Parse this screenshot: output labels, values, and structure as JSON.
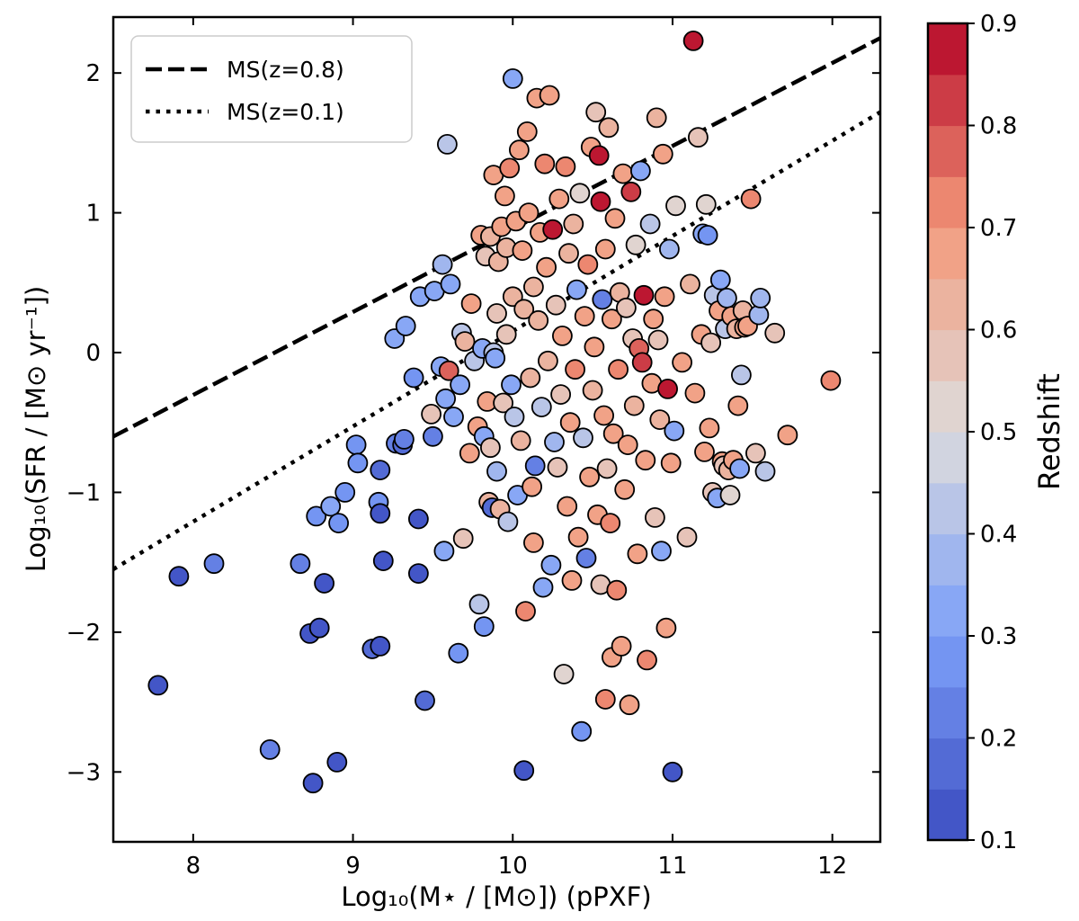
{
  "chart_data": {
    "type": "scatter",
    "xlabel": "Log₁₀(M⋆ / [M⊙]) (pPXF)",
    "ylabel": "Log₁₀(SFR / [M⊙ yr⁻¹])",
    "xlim": [
      7.5,
      12.3
    ],
    "ylim": [
      -3.5,
      2.4
    ],
    "xticks": [
      8,
      9,
      10,
      11,
      12
    ],
    "yticks": [
      -3,
      -2,
      -1,
      0,
      1,
      2
    ],
    "colorbar": {
      "label": "Redshift",
      "range": [
        0.1,
        0.9
      ],
      "ticks": [
        0.1,
        0.2,
        0.3,
        0.4,
        0.5,
        0.6,
        0.7,
        0.8,
        0.9
      ],
      "colormap": "coolwarm",
      "levels": 16
    },
    "lines": [
      {
        "name": "MS(z=0.8)",
        "style": "dashed",
        "x": [
          7.5,
          12.3
        ],
        "y": [
          -0.6,
          2.25
        ]
      },
      {
        "name": "MS(z=0.1)",
        "style": "dotted",
        "x": [
          7.5,
          12.3
        ],
        "y": [
          -1.55,
          1.72
        ]
      }
    ],
    "legend": {
      "location": "top-left",
      "entries": [
        "MS(z=0.8)",
        "MS(z=0.1)"
      ]
    },
    "points": [
      {
        "x": 7.78,
        "y": -2.38,
        "z": 0.12
      },
      {
        "x": 7.91,
        "y": -1.6,
        "z": 0.13
      },
      {
        "x": 8.13,
        "y": -1.51,
        "z": 0.22
      },
      {
        "x": 8.48,
        "y": -2.84,
        "z": 0.25
      },
      {
        "x": 8.67,
        "y": -1.51,
        "z": 0.2
      },
      {
        "x": 8.73,
        "y": -2.01,
        "z": 0.14
      },
      {
        "x": 8.75,
        "y": -3.08,
        "z": 0.15
      },
      {
        "x": 8.77,
        "y": -1.17,
        "z": 0.3
      },
      {
        "x": 8.79,
        "y": -1.97,
        "z": 0.13
      },
      {
        "x": 8.82,
        "y": -1.65,
        "z": 0.14
      },
      {
        "x": 8.86,
        "y": -1.1,
        "z": 0.32
      },
      {
        "x": 8.9,
        "y": -2.93,
        "z": 0.14
      },
      {
        "x": 8.91,
        "y": -1.22,
        "z": 0.3
      },
      {
        "x": 8.95,
        "y": -1.0,
        "z": 0.3
      },
      {
        "x": 9.02,
        "y": -0.66,
        "z": 0.3
      },
      {
        "x": 9.03,
        "y": -0.79,
        "z": 0.28
      },
      {
        "x": 9.12,
        "y": -2.12,
        "z": 0.16
      },
      {
        "x": 9.16,
        "y": -1.07,
        "z": 0.26
      },
      {
        "x": 9.17,
        "y": -0.84,
        "z": 0.17
      },
      {
        "x": 9.17,
        "y": -2.1,
        "z": 0.15
      },
      {
        "x": 9.17,
        "y": -1.15,
        "z": 0.15
      },
      {
        "x": 9.19,
        "y": -1.49,
        "z": 0.14
      },
      {
        "x": 9.26,
        "y": 0.1,
        "z": 0.35
      },
      {
        "x": 9.27,
        "y": -0.65,
        "z": 0.22
      },
      {
        "x": 9.31,
        "y": -0.66,
        "z": 0.18
      },
      {
        "x": 9.32,
        "y": -0.62,
        "z": 0.24
      },
      {
        "x": 9.33,
        "y": 0.19,
        "z": 0.33
      },
      {
        "x": 9.38,
        "y": -0.18,
        "z": 0.3
      },
      {
        "x": 9.41,
        "y": -1.19,
        "z": 0.15
      },
      {
        "x": 9.41,
        "y": -1.58,
        "z": 0.15
      },
      {
        "x": 9.42,
        "y": 0.4,
        "z": 0.33
      },
      {
        "x": 9.45,
        "y": -2.49,
        "z": 0.18
      },
      {
        "x": 9.49,
        "y": -0.44,
        "z": 0.55
      },
      {
        "x": 9.5,
        "y": -0.6,
        "z": 0.25
      },
      {
        "x": 9.51,
        "y": 0.44,
        "z": 0.33
      },
      {
        "x": 9.55,
        "y": -0.1,
        "z": 0.32
      },
      {
        "x": 9.56,
        "y": 0.63,
        "z": 0.38
      },
      {
        "x": 9.57,
        "y": -1.42,
        "z": 0.35
      },
      {
        "x": 9.58,
        "y": -0.33,
        "z": 0.32
      },
      {
        "x": 9.59,
        "y": 1.49,
        "z": 0.4
      },
      {
        "x": 9.6,
        "y": -0.13,
        "z": 0.75
      },
      {
        "x": 9.61,
        "y": 0.49,
        "z": 0.35
      },
      {
        "x": 9.63,
        "y": -0.46,
        "z": 0.35
      },
      {
        "x": 9.66,
        "y": -2.15,
        "z": 0.3
      },
      {
        "x": 9.67,
        "y": -0.23,
        "z": 0.35
      },
      {
        "x": 9.68,
        "y": 0.14,
        "z": 0.4
      },
      {
        "x": 9.69,
        "y": -1.33,
        "z": 0.58
      },
      {
        "x": 9.7,
        "y": 0.08,
        "z": 0.6
      },
      {
        "x": 9.73,
        "y": -0.72,
        "z": 0.7
      },
      {
        "x": 9.74,
        "y": 0.35,
        "z": 0.65
      },
      {
        "x": 9.76,
        "y": -0.06,
        "z": 0.4
      },
      {
        "x": 9.78,
        "y": -0.53,
        "z": 0.65
      },
      {
        "x": 9.79,
        "y": -1.8,
        "z": 0.4
      },
      {
        "x": 9.8,
        "y": 0.84,
        "z": 0.65
      },
      {
        "x": 9.81,
        "y": 0.03,
        "z": 0.35
      },
      {
        "x": 9.82,
        "y": -1.96,
        "z": 0.3
      },
      {
        "x": 9.82,
        "y": -0.6,
        "z": 0.35
      },
      {
        "x": 9.83,
        "y": 0.69,
        "z": 0.58
      },
      {
        "x": 9.84,
        "y": -0.35,
        "z": 0.65
      },
      {
        "x": 9.85,
        "y": -1.07,
        "z": 0.62
      },
      {
        "x": 9.86,
        "y": 0.83,
        "z": 0.62
      },
      {
        "x": 9.86,
        "y": -0.68,
        "z": 0.55
      },
      {
        "x": 9.87,
        "y": -1.11,
        "z": 0.18
      },
      {
        "x": 9.88,
        "y": 1.27,
        "z": 0.68
      },
      {
        "x": 9.88,
        "y": 0.0,
        "z": 0.45
      },
      {
        "x": 9.89,
        "y": -0.04,
        "z": 0.35
      },
      {
        "x": 9.9,
        "y": -0.85,
        "z": 0.38
      },
      {
        "x": 9.9,
        "y": 0.28,
        "z": 0.58
      },
      {
        "x": 9.91,
        "y": 0.65,
        "z": 0.6
      },
      {
        "x": 9.92,
        "y": -1.12,
        "z": 0.62
      },
      {
        "x": 9.93,
        "y": 0.9,
        "z": 0.65
      },
      {
        "x": 9.94,
        "y": -0.36,
        "z": 0.55
      },
      {
        "x": 9.95,
        "y": 1.12,
        "z": 0.65
      },
      {
        "x": 9.96,
        "y": 0.75,
        "z": 0.62
      },
      {
        "x": 9.96,
        "y": 0.13,
        "z": 0.58
      },
      {
        "x": 9.97,
        "y": -1.21,
        "z": 0.45
      },
      {
        "x": 9.98,
        "y": 1.32,
        "z": 0.72
      },
      {
        "x": 9.99,
        "y": -0.23,
        "z": 0.35
      },
      {
        "x": 10.0,
        "y": 1.96,
        "z": 0.35
      },
      {
        "x": 10.0,
        "y": 0.4,
        "z": 0.62
      },
      {
        "x": 10.01,
        "y": -0.46,
        "z": 0.4
      },
      {
        "x": 10.02,
        "y": 0.94,
        "z": 0.7
      },
      {
        "x": 10.03,
        "y": -1.02,
        "z": 0.35
      },
      {
        "x": 10.04,
        "y": 1.45,
        "z": 0.7
      },
      {
        "x": 10.05,
        "y": -0.63,
        "z": 0.62
      },
      {
        "x": 10.06,
        "y": 0.73,
        "z": 0.65
      },
      {
        "x": 10.07,
        "y": 0.31,
        "z": 0.6
      },
      {
        "x": 10.07,
        "y": -2.99,
        "z": 0.15
      },
      {
        "x": 10.08,
        "y": -1.85,
        "z": 0.72
      },
      {
        "x": 10.09,
        "y": 1.58,
        "z": 0.7
      },
      {
        "x": 10.1,
        "y": 1.0,
        "z": 0.68
      },
      {
        "x": 10.11,
        "y": -0.18,
        "z": 0.62
      },
      {
        "x": 10.12,
        "y": -0.96,
        "z": 0.7
      },
      {
        "x": 10.13,
        "y": 0.47,
        "z": 0.6
      },
      {
        "x": 10.13,
        "y": -1.36,
        "z": 0.7
      },
      {
        "x": 10.14,
        "y": -0.81,
        "z": 0.2
      },
      {
        "x": 10.15,
        "y": 1.82,
        "z": 0.7
      },
      {
        "x": 10.16,
        "y": 0.23,
        "z": 0.62
      },
      {
        "x": 10.17,
        "y": 0.86,
        "z": 0.66
      },
      {
        "x": 10.18,
        "y": -0.39,
        "z": 0.4
      },
      {
        "x": 10.19,
        "y": -1.68,
        "z": 0.35
      },
      {
        "x": 10.2,
        "y": 1.35,
        "z": 0.72
      },
      {
        "x": 10.21,
        "y": 0.61,
        "z": 0.68
      },
      {
        "x": 10.22,
        "y": -0.06,
        "z": 0.62
      },
      {
        "x": 10.23,
        "y": 1.84,
        "z": 0.68
      },
      {
        "x": 10.24,
        "y": -1.52,
        "z": 0.35
      },
      {
        "x": 10.25,
        "y": 0.88,
        "z": 0.88
      },
      {
        "x": 10.26,
        "y": -0.64,
        "z": 0.38
      },
      {
        "x": 10.27,
        "y": 0.34,
        "z": 0.55
      },
      {
        "x": 10.28,
        "y": -0.82,
        "z": 0.58
      },
      {
        "x": 10.29,
        "y": 1.1,
        "z": 0.7
      },
      {
        "x": 10.3,
        "y": -0.3,
        "z": 0.55
      },
      {
        "x": 10.31,
        "y": 0.12,
        "z": 0.66
      },
      {
        "x": 10.32,
        "y": -2.3,
        "z": 0.5
      },
      {
        "x": 10.33,
        "y": 1.33,
        "z": 0.72
      },
      {
        "x": 10.34,
        "y": -1.1,
        "z": 0.7
      },
      {
        "x": 10.35,
        "y": 0.71,
        "z": 0.62
      },
      {
        "x": 10.36,
        "y": -0.5,
        "z": 0.68
      },
      {
        "x": 10.37,
        "y": -1.63,
        "z": 0.7
      },
      {
        "x": 10.38,
        "y": 0.92,
        "z": 0.62
      },
      {
        "x": 10.39,
        "y": -0.12,
        "z": 0.72
      },
      {
        "x": 10.4,
        "y": 0.45,
        "z": 0.35
      },
      {
        "x": 10.41,
        "y": -1.32,
        "z": 0.66
      },
      {
        "x": 10.42,
        "y": 1.14,
        "z": 0.52
      },
      {
        "x": 10.43,
        "y": -2.71,
        "z": 0.3
      },
      {
        "x": 10.44,
        "y": -0.61,
        "z": 0.45
      },
      {
        "x": 10.45,
        "y": 0.26,
        "z": 0.7
      },
      {
        "x": 10.46,
        "y": -1.47,
        "z": 0.2
      },
      {
        "x": 10.47,
        "y": 0.63,
        "z": 0.72
      },
      {
        "x": 10.48,
        "y": -0.89,
        "z": 0.66
      },
      {
        "x": 10.49,
        "y": 1.47,
        "z": 0.66
      },
      {
        "x": 10.5,
        "y": -0.27,
        "z": 0.62
      },
      {
        "x": 10.51,
        "y": 0.04,
        "z": 0.7
      },
      {
        "x": 10.52,
        "y": 1.72,
        "z": 0.58
      },
      {
        "x": 10.53,
        "y": -1.16,
        "z": 0.7
      },
      {
        "x": 10.54,
        "y": 1.41,
        "z": 0.88
      },
      {
        "x": 10.55,
        "y": 1.08,
        "z": 0.9
      },
      {
        "x": 10.55,
        "y": -1.66,
        "z": 0.55
      },
      {
        "x": 10.56,
        "y": 0.38,
        "z": 0.2
      },
      {
        "x": 10.57,
        "y": -0.45,
        "z": 0.66
      },
      {
        "x": 10.58,
        "y": 0.74,
        "z": 0.7
      },
      {
        "x": 10.58,
        "y": -2.48,
        "z": 0.72
      },
      {
        "x": 10.59,
        "y": -0.83,
        "z": 0.58
      },
      {
        "x": 10.6,
        "y": 1.61,
        "z": 0.6
      },
      {
        "x": 10.61,
        "y": -1.22,
        "z": 0.72
      },
      {
        "x": 10.62,
        "y": 0.24,
        "z": 0.66
      },
      {
        "x": 10.62,
        "y": -2.18,
        "z": 0.7
      },
      {
        "x": 10.63,
        "y": -0.58,
        "z": 0.7
      },
      {
        "x": 10.64,
        "y": 0.96,
        "z": 0.7
      },
      {
        "x": 10.65,
        "y": -1.7,
        "z": 0.72
      },
      {
        "x": 10.66,
        "y": -0.12,
        "z": 0.72
      },
      {
        "x": 10.67,
        "y": 0.43,
        "z": 0.62
      },
      {
        "x": 10.68,
        "y": -2.1,
        "z": 0.7
      },
      {
        "x": 10.69,
        "y": 1.28,
        "z": 0.66
      },
      {
        "x": 10.7,
        "y": -0.98,
        "z": 0.7
      },
      {
        "x": 10.71,
        "y": 0.32,
        "z": 0.58
      },
      {
        "x": 10.72,
        "y": -0.66,
        "z": 0.68
      },
      {
        "x": 10.73,
        "y": -2.52,
        "z": 0.7
      },
      {
        "x": 10.74,
        "y": 1.15,
        "z": 0.8
      },
      {
        "x": 10.75,
        "y": 0.1,
        "z": 0.55
      },
      {
        "x": 10.76,
        "y": -0.38,
        "z": 0.62
      },
      {
        "x": 10.77,
        "y": 0.77,
        "z": 0.52
      },
      {
        "x": 10.78,
        "y": -1.44,
        "z": 0.7
      },
      {
        "x": 10.79,
        "y": 0.03,
        "z": 0.75
      },
      {
        "x": 10.8,
        "y": 1.3,
        "z": 0.35
      },
      {
        "x": 10.81,
        "y": -0.07,
        "z": 0.82
      },
      {
        "x": 10.82,
        "y": 0.41,
        "z": 0.85
      },
      {
        "x": 10.83,
        "y": -0.77,
        "z": 0.68
      },
      {
        "x": 10.84,
        "y": -2.2,
        "z": 0.72
      },
      {
        "x": 10.86,
        "y": 0.92,
        "z": 0.45
      },
      {
        "x": 10.87,
        "y": -0.22,
        "z": 0.66
      },
      {
        "x": 10.88,
        "y": 0.24,
        "z": 0.66
      },
      {
        "x": 10.89,
        "y": -1.18,
        "z": 0.55
      },
      {
        "x": 10.9,
        "y": 1.68,
        "z": 0.62
      },
      {
        "x": 10.91,
        "y": 0.09,
        "z": 0.55
      },
      {
        "x": 10.92,
        "y": -0.48,
        "z": 0.62
      },
      {
        "x": 10.93,
        "y": -1.42,
        "z": 0.35
      },
      {
        "x": 10.94,
        "y": 1.42,
        "z": 0.7
      },
      {
        "x": 10.95,
        "y": 0.4,
        "z": 0.7
      },
      {
        "x": 10.96,
        "y": -1.97,
        "z": 0.7
      },
      {
        "x": 10.97,
        "y": -0.26,
        "z": 0.85
      },
      {
        "x": 10.98,
        "y": 0.74,
        "z": 0.38
      },
      {
        "x": 10.99,
        "y": -0.79,
        "z": 0.7
      },
      {
        "x": 11.0,
        "y": -3.0,
        "z": 0.14
      },
      {
        "x": 11.01,
        "y": -0.56,
        "z": 0.35
      },
      {
        "x": 11.02,
        "y": 1.05,
        "z": 0.5
      },
      {
        "x": 11.06,
        "y": -0.07,
        "z": 0.66
      },
      {
        "x": 11.09,
        "y": -1.32,
        "z": 0.55
      },
      {
        "x": 11.11,
        "y": 0.49,
        "z": 0.62
      },
      {
        "x": 11.13,
        "y": 2.23,
        "z": 0.9
      },
      {
        "x": 11.14,
        "y": -0.29,
        "z": 0.7
      },
      {
        "x": 11.16,
        "y": 1.54,
        "z": 0.55
      },
      {
        "x": 11.18,
        "y": 0.13,
        "z": 0.66
      },
      {
        "x": 11.19,
        "y": 0.85,
        "z": 0.35
      },
      {
        "x": 11.2,
        "y": -0.71,
        "z": 0.65
      },
      {
        "x": 11.21,
        "y": 1.06,
        "z": 0.52
      },
      {
        "x": 11.22,
        "y": 0.84,
        "z": 0.3
      },
      {
        "x": 11.23,
        "y": -0.54,
        "z": 0.68
      },
      {
        "x": 11.24,
        "y": 0.07,
        "z": 0.55
      },
      {
        "x": 11.25,
        "y": -1.0,
        "z": 0.55
      },
      {
        "x": 11.26,
        "y": 0.41,
        "z": 0.4
      },
      {
        "x": 11.28,
        "y": -1.04,
        "z": 0.35
      },
      {
        "x": 11.29,
        "y": 0.3,
        "z": 0.68
      },
      {
        "x": 11.3,
        "y": 0.52,
        "z": 0.35
      },
      {
        "x": 11.31,
        "y": -0.78,
        "z": 0.66
      },
      {
        "x": 11.32,
        "y": -0.81,
        "z": 0.55
      },
      {
        "x": 11.33,
        "y": 0.17,
        "z": 0.4
      },
      {
        "x": 11.34,
        "y": 0.39,
        "z": 0.38
      },
      {
        "x": 11.35,
        "y": -0.84,
        "z": 0.6
      },
      {
        "x": 11.36,
        "y": -1.02,
        "z": 0.5
      },
      {
        "x": 11.37,
        "y": 0.26,
        "z": 0.66
      },
      {
        "x": 11.38,
        "y": -0.77,
        "z": 0.65
      },
      {
        "x": 11.4,
        "y": 0.17,
        "z": 0.6
      },
      {
        "x": 11.41,
        "y": -0.38,
        "z": 0.66
      },
      {
        "x": 11.42,
        "y": -0.83,
        "z": 0.35
      },
      {
        "x": 11.43,
        "y": -0.16,
        "z": 0.45
      },
      {
        "x": 11.44,
        "y": 0.3,
        "z": 0.6
      },
      {
        "x": 11.45,
        "y": 0.18,
        "z": 0.66
      },
      {
        "x": 11.47,
        "y": 0.19,
        "z": 0.7
      },
      {
        "x": 11.49,
        "y": 1.1,
        "z": 0.72
      },
      {
        "x": 11.52,
        "y": -0.72,
        "z": 0.55
      },
      {
        "x": 11.54,
        "y": 0.27,
        "z": 0.38
      },
      {
        "x": 11.55,
        "y": 0.39,
        "z": 0.38
      },
      {
        "x": 11.58,
        "y": -0.85,
        "z": 0.45
      },
      {
        "x": 11.64,
        "y": 0.14,
        "z": 0.55
      },
      {
        "x": 11.72,
        "y": -0.59,
        "z": 0.68
      },
      {
        "x": 11.99,
        "y": -0.2,
        "z": 0.72
      }
    ]
  }
}
